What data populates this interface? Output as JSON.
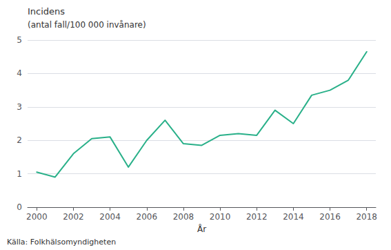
{
  "chart_data": {
    "type": "line",
    "x": [
      2000,
      2001,
      2002,
      2003,
      2004,
      2005,
      2006,
      2007,
      2008,
      2009,
      2010,
      2011,
      2012,
      2013,
      2014,
      2015,
      2016,
      2017,
      2018
    ],
    "values": [
      1.05,
      0.9,
      1.6,
      2.05,
      2.1,
      1.2,
      2.0,
      2.6,
      1.9,
      1.85,
      2.15,
      2.2,
      2.15,
      2.9,
      2.5,
      3.35,
      3.5,
      3.8,
      4.65
    ],
    "color": "#29b089",
    "xlabel": "År",
    "ylabel": "Incidens",
    "annotations": [
      "(antal fall/100 000 invånare)",
      "Källa: Folkhälsomyndigheten"
    ],
    "xlim": [
      1999.5,
      2018.5
    ],
    "xticks": [
      2000,
      2002,
      2004,
      2006,
      2008,
      2010,
      2012,
      2014,
      2016,
      2018
    ],
    "ylim": [
      0,
      5
    ],
    "yticks": [
      0,
      1,
      2,
      3,
      4,
      5
    ],
    "grid": true
  }
}
